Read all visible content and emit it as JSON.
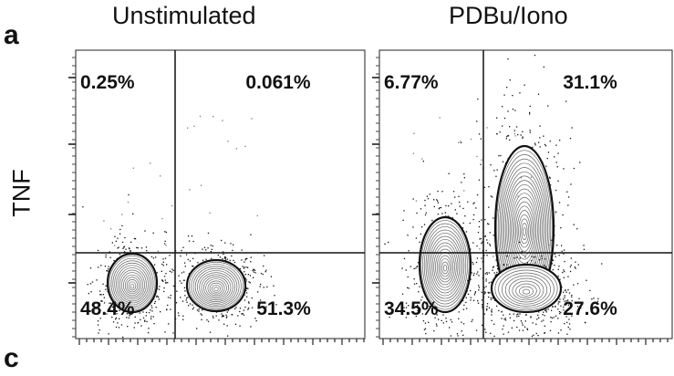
{
  "panel_labels": {
    "top": "a",
    "bottom": "c"
  },
  "chart_data": [
    {
      "type": "scatter",
      "title": "Unstimulated",
      "ylabel": "TNF",
      "xlabel": "",
      "y_scale": "log",
      "x_scale": "log",
      "plot_style": "contour with outlier dots",
      "quadrants": {
        "upper_left": "0.25%",
        "upper_right": "0.061%",
        "lower_left": "48.4%",
        "lower_right": "51.3%"
      }
    },
    {
      "type": "scatter",
      "title": "PDBu/Iono",
      "ylabel": "",
      "xlabel": "",
      "y_scale": "log",
      "x_scale": "log",
      "plot_style": "contour with outlier dots",
      "quadrants": {
        "upper_left": "6.77%",
        "upper_right": "31.1%",
        "lower_left": "34.5%",
        "lower_right": "27.6%"
      }
    }
  ],
  "colors": {
    "ink": "#111111",
    "background": "#ffffff"
  }
}
